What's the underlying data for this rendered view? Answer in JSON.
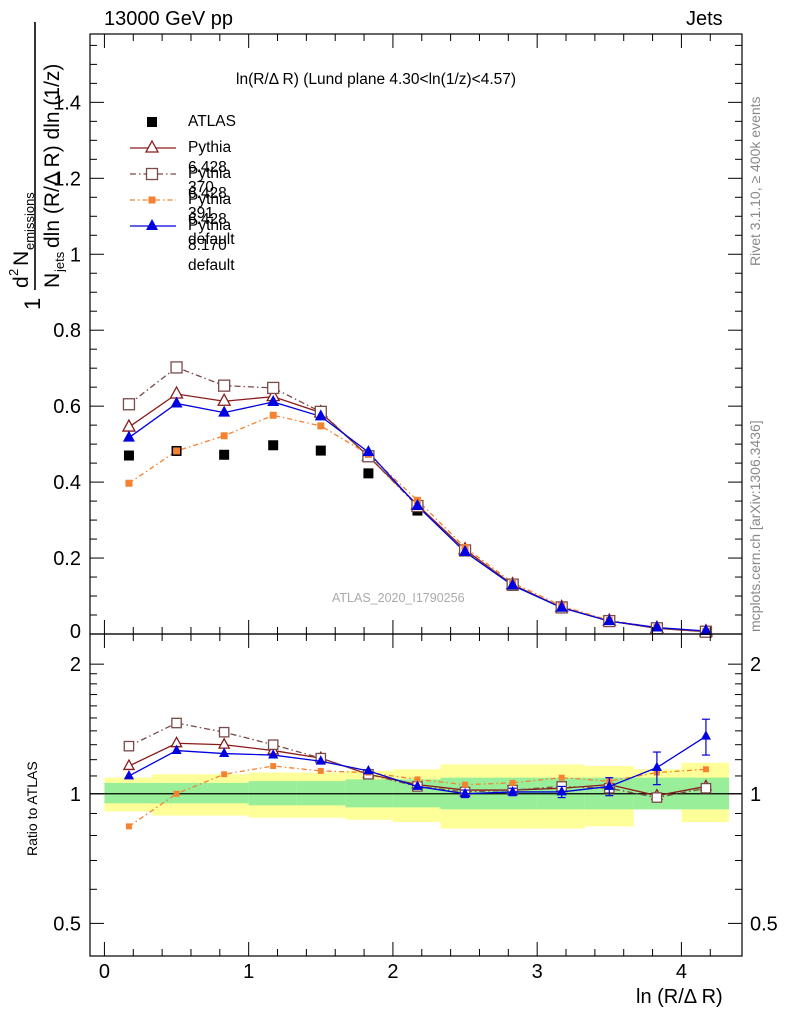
{
  "header": {
    "left": "13000 GeV pp",
    "right": "Jets",
    "title": "ln(R/Δ R) (Lund plane 4.30<ln(1/z)<4.57)",
    "watermark": "ATLAS_2020_I1790256",
    "side_top": "Rivet 3.1.10, ≥ 400k events",
    "side_bottom": "mcplots.cern.ch [arXiv:1306.3436]"
  },
  "chart_data": [
    {
      "type": "scatter",
      "xlabel": "ln (R/Δ R)",
      "ylabel": "1/N_jets d² N_emissions / dln (R/Δ R) dln (1/z)",
      "xlim": [
        -0.1,
        4.42
      ],
      "ylim": [
        0,
        1.58
      ],
      "yticks": [
        "0.2",
        "0.4",
        "0.6",
        "0.8",
        "1",
        "1.2",
        "1.4"
      ],
      "xticks": [
        "0",
        "1",
        "2",
        "3",
        "4"
      ],
      "x": [
        0.17,
        0.5,
        0.83,
        1.17,
        1.5,
        1.83,
        2.17,
        2.5,
        2.83,
        3.17,
        3.5,
        3.83,
        4.17
      ],
      "series": [
        {
          "name": "ATLAS",
          "color": "#000000",
          "values": [
            0.47,
            0.482,
            0.472,
            0.497,
            0.483,
            0.423,
            0.325,
            0.218,
            0.127,
            0.068,
            0.034,
            0.015,
            0.006
          ]
        },
        {
          "name": "Pythia 6.428 370",
          "color": "#8b1a1a",
          "values": [
            0.545,
            0.632,
            0.613,
            0.625,
            0.583,
            0.468,
            0.34,
            0.222,
            0.13,
            0.07,
            0.034,
            0.015,
            0.006
          ]
        },
        {
          "name": "Pythia 6.428 391",
          "color": "#7a4a4a",
          "values": [
            0.605,
            0.702,
            0.654,
            0.648,
            0.585,
            0.468,
            0.337,
            0.22,
            0.13,
            0.07,
            0.034,
            0.015,
            0.006
          ]
        },
        {
          "name": "Pythia 6.428 default",
          "color": "#f58231",
          "values": [
            0.397,
            0.482,
            0.522,
            0.576,
            0.548,
            0.473,
            0.352,
            0.228,
            0.135,
            0.074,
            0.036,
            0.017,
            0.007
          ]
        },
        {
          "name": "Pythia 8.170 default",
          "color": "#0000e0",
          "values": [
            0.517,
            0.607,
            0.583,
            0.611,
            0.573,
            0.479,
            0.337,
            0.216,
            0.128,
            0.069,
            0.034,
            0.017,
            0.008
          ]
        }
      ]
    },
    {
      "type": "scatter",
      "ylabel": "Ratio to ATLAS",
      "yscale": "log",
      "ylim": [
        0.42,
        2.35
      ],
      "yticks": [
        "0.5",
        "1",
        "2"
      ],
      "x": [
        0.17,
        0.5,
        0.83,
        1.17,
        1.5,
        1.83,
        2.17,
        2.5,
        2.83,
        3.17,
        3.5,
        3.83,
        4.17
      ],
      "bin_edges": [
        0.0,
        0.33,
        0.67,
        1.0,
        1.33,
        1.67,
        2.0,
        2.33,
        2.67,
        3.0,
        3.33,
        3.67,
        4.0,
        4.33
      ],
      "band_inner": [
        [
          0.95,
          1.06
        ],
        [
          0.95,
          1.06
        ],
        [
          0.95,
          1.06
        ],
        [
          0.94,
          1.07
        ],
        [
          0.94,
          1.07
        ],
        [
          0.93,
          1.08
        ],
        [
          0.93,
          1.08
        ],
        [
          0.92,
          1.09
        ],
        [
          0.92,
          1.09
        ],
        [
          0.92,
          1.09
        ],
        [
          0.92,
          1.09
        ],
        [
          0.92,
          1.09
        ],
        [
          0.92,
          1.09
        ]
      ],
      "band_outer": [
        [
          0.91,
          1.09
        ],
        [
          0.89,
          1.11
        ],
        [
          0.89,
          1.11
        ],
        [
          0.88,
          1.12
        ],
        [
          0.88,
          1.12
        ],
        [
          0.87,
          1.13
        ],
        [
          0.86,
          1.14
        ],
        [
          0.83,
          1.17
        ],
        [
          0.83,
          1.17
        ],
        [
          0.83,
          1.17
        ],
        [
          0.84,
          1.16
        ],
        [
          0.92,
          1.14
        ],
        [
          0.86,
          1.18
        ]
      ],
      "series": [
        {
          "name": "Pythia 6.428 370",
          "values": [
            1.16,
            1.31,
            1.3,
            1.26,
            1.21,
            1.11,
            1.05,
            1.02,
            1.02,
            1.03,
            1.05,
            0.99,
            1.04
          ]
        },
        {
          "name": "Pythia 6.428 391",
          "values": [
            1.29,
            1.46,
            1.39,
            1.3,
            1.21,
            1.11,
            1.04,
            1.01,
            1.02,
            1.04,
            1.03,
            0.98,
            1.03
          ]
        },
        {
          "name": "Pythia 6.428 default",
          "values": [
            0.84,
            1.0,
            1.11,
            1.16,
            1.13,
            1.12,
            1.08,
            1.05,
            1.06,
            1.09,
            1.07,
            1.12,
            1.14
          ]
        },
        {
          "name": "Pythia 8.170 default",
          "values": [
            1.1,
            1.26,
            1.24,
            1.23,
            1.19,
            1.13,
            1.04,
            1.0,
            1.01,
            1.01,
            1.04,
            1.15,
            1.36
          ]
        }
      ],
      "errors": {
        "Pythia 8.170 default": [
          0,
          0,
          0,
          0,
          0,
          0,
          0,
          0.02,
          0.02,
          0.03,
          0.05,
          0.1,
          0.13
        ]
      }
    }
  ]
}
